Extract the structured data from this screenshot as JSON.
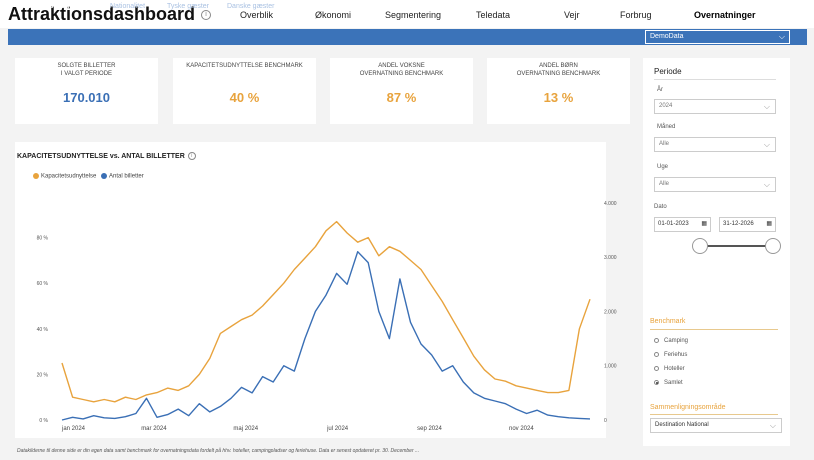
{
  "header": {
    "title": "Attraktionsdashboard",
    "nav": [
      {
        "label": "Overblik"
      },
      {
        "label": "Økonomi"
      },
      {
        "label": "Segmentering"
      },
      {
        "label": "Teledata"
      },
      {
        "label": "Vejr"
      },
      {
        "label": "Forbrug"
      },
      {
        "label": "Overnatninger"
      }
    ]
  },
  "subnav": {
    "tabs": [
      {
        "label": "Kapacitetsudnyttelse"
      },
      {
        "label": "Nationalitet"
      },
      {
        "label": "Tyske gæster"
      },
      {
        "label": "Danske gæster"
      }
    ],
    "dataset": "DemoData"
  },
  "kpis": [
    {
      "label": "SOLGTE BILLETTER\nI VALGT PERIODE",
      "value": "170.010",
      "color": "#3a6fb5"
    },
    {
      "label": "KAPACITETSUDNYTTELSE BENCHMARK",
      "value": "40 %",
      "color": "#e8a33d"
    },
    {
      "label": "ANDEL VOKSNE\nOVERNATNING BENCHMARK",
      "value": "87 %",
      "color": "#e8a33d"
    },
    {
      "label": "ANDEL BØRN\nOVERNATNING BENCHMARK",
      "value": "13 %",
      "color": "#e8a33d"
    }
  ],
  "chart": {
    "title": "KAPACITETSUDNYTTELSE vs. ANTAL BILLETTER",
    "legend": [
      "Kapacitetsudnyttelse",
      "Antal billetter"
    ]
  },
  "chart_data": {
    "type": "line",
    "title": "KAPACITETSUDNYTTELSE vs. ANTAL BILLETTER",
    "x_labels": [
      "jan 2024",
      "mar 2024",
      "maj 2024",
      "jul 2024",
      "sep 2024",
      "nov 2024"
    ],
    "x_label_weeks": [
      0,
      8.7,
      17.4,
      26.1,
      34.8,
      43.5
    ],
    "y_left": {
      "ticks": [
        "0 %",
        "20 %",
        "40 %",
        "60 %",
        "80 %"
      ],
      "range": [
        0,
        100
      ]
    },
    "y_right": {
      "ticks": [
        "0",
        "1.000",
        "2.000",
        "3.000",
        "4.000"
      ],
      "range": [
        0,
        4200
      ]
    },
    "series": [
      {
        "name": "Kapacitetsudnyttelse",
        "axis": "left",
        "color": "#e8a33d",
        "values": [
          25,
          10,
          9,
          8,
          9,
          8,
          10,
          9,
          11,
          12,
          14,
          13,
          15,
          20,
          27,
          38,
          41,
          44,
          46,
          50,
          55,
          60,
          66,
          71,
          76,
          83,
          87,
          82,
          78,
          80,
          72,
          76,
          74,
          70,
          66,
          59,
          52,
          44,
          36,
          28,
          22,
          18,
          17,
          15,
          14,
          13,
          12,
          12,
          13,
          40,
          53
        ]
      },
      {
        "name": "Antal billetter",
        "axis": "right",
        "color": "#3a6fb5",
        "values": [
          0,
          50,
          20,
          80,
          40,
          30,
          60,
          120,
          400,
          50,
          100,
          200,
          80,
          300,
          150,
          250,
          400,
          600,
          500,
          800,
          700,
          1000,
          900,
          1500,
          2000,
          2300,
          2700,
          2500,
          3100,
          2900,
          2000,
          1500,
          2600,
          1800,
          1400,
          1200,
          900,
          1000,
          700,
          500,
          400,
          350,
          300,
          200,
          120,
          180,
          90,
          60,
          40,
          30,
          20
        ]
      }
    ]
  },
  "sidebar": {
    "periode_title": "Periode",
    "year_label": "År",
    "year_value": "2024",
    "month_label": "Måned",
    "month_value": "Alle",
    "week_label": "Uge",
    "week_value": "Alle",
    "date_label": "Dato",
    "date_from": "01-01-2023",
    "date_to": "31-12-2026",
    "benchmark_title": "Benchmark",
    "benchmark_options": [
      {
        "label": "Camping",
        "selected": false
      },
      {
        "label": "Feriehus",
        "selected": false
      },
      {
        "label": "Hoteller",
        "selected": false
      },
      {
        "label": "Samlet",
        "selected": true
      }
    ],
    "compare_title": "Sammenligningsområde",
    "compare_value": "Destination National"
  },
  "footnote": "Datakilderne til denne side er din egen data samt benchmark for overnatningsdata fordelt på hhv. hoteller, campingpladser og feriehuse. Data er senest opdateret pr. 30. December ...",
  "colors": {
    "accent": "#3b73b9",
    "orange": "#e8a33d",
    "blue": "#3a6fb5"
  }
}
